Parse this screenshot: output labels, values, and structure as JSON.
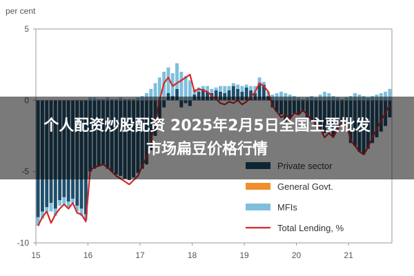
{
  "overlay": {
    "line1": "个人配资炒股配资 2025年2月5日全国主要批发",
    "line2": "市场扁豆价格行情"
  },
  "chart_data": {
    "type": "bar",
    "ylabel": "per cent",
    "ylim": [
      -10,
      5
    ],
    "yticks": [
      5,
      0,
      -5,
      -10
    ],
    "xticks": [
      "15",
      "16",
      "17",
      "18",
      "19",
      "20",
      "21"
    ],
    "x": [
      "2015-01",
      "2015-02",
      "2015-03",
      "2015-04",
      "2015-05",
      "2015-06",
      "2015-07",
      "2015-08",
      "2015-09",
      "2015-10",
      "2015-11",
      "2015-12",
      "2016-01",
      "2016-02",
      "2016-03",
      "2016-04",
      "2016-05",
      "2016-06",
      "2016-07",
      "2016-08",
      "2016-09",
      "2016-10",
      "2016-11",
      "2016-12",
      "2017-01",
      "2017-02",
      "2017-03",
      "2017-04",
      "2017-05",
      "2017-06",
      "2017-07",
      "2017-08",
      "2017-09",
      "2017-10",
      "2017-11",
      "2017-12",
      "2018-01",
      "2018-02",
      "2018-03",
      "2018-04",
      "2018-05",
      "2018-06",
      "2018-07",
      "2018-08",
      "2018-09",
      "2018-10",
      "2018-11",
      "2018-12",
      "2019-01",
      "2019-02",
      "2019-03",
      "2019-04",
      "2019-05",
      "2019-06",
      "2019-07",
      "2019-08",
      "2019-09",
      "2019-10",
      "2019-11",
      "2019-12",
      "2020-01",
      "2020-02",
      "2020-03",
      "2020-04",
      "2020-05",
      "2020-06",
      "2020-07",
      "2020-08",
      "2020-09",
      "2020-10",
      "2020-11",
      "2020-12",
      "2021-01",
      "2021-02",
      "2021-03",
      "2021-04",
      "2021-05",
      "2021-06",
      "2021-07",
      "2021-08",
      "2021-09",
      "2021-10"
    ],
    "series": [
      {
        "name": "Private sector",
        "type": "bar",
        "color": "#1f4e6b",
        "values": [
          -8.2,
          -7.8,
          -7.5,
          -7.2,
          -7.6,
          -7.0,
          -6.8,
          -7.1,
          -6.9,
          -7.4,
          -7.6,
          -8.0,
          -5.0,
          -4.8,
          -4.6,
          -4.5,
          -4.8,
          -5.0,
          -5.2,
          -5.3,
          -5.5,
          -5.6,
          -5.4,
          -5.1,
          -4.8,
          -4.5,
          -3.5,
          -2.5,
          -1.5,
          -0.5,
          0.5,
          0.3,
          0.8,
          -0.5,
          -0.2,
          -0.4,
          0.4,
          0.6,
          0.8,
          0.6,
          0.5,
          0.7,
          0.6,
          0.5,
          0.7,
          1.0,
          0.8,
          0.6,
          0.9,
          0.7,
          0.5,
          1.2,
          1.1,
          0.3,
          -0.5,
          -0.8,
          -1.0,
          -1.5,
          -1.2,
          -0.9,
          -1.0,
          -0.8,
          -1.2,
          -1.5,
          -1.8,
          -2.0,
          -2.3,
          -2.2,
          -2.5,
          -2.0,
          -1.6,
          -1.8,
          -3.0,
          -3.2,
          -3.6,
          -3.8,
          -3.4,
          -3.0,
          -2.6,
          -2.2,
          -1.8,
          -1.2
        ]
      },
      {
        "name": "General Govt.",
        "type": "bar",
        "color": "#f28e2b",
        "values": [
          0,
          0,
          0,
          0,
          0,
          0,
          0,
          0,
          0,
          0,
          0,
          0,
          0,
          0,
          0,
          0,
          0,
          0,
          0,
          0,
          0,
          0,
          0,
          0,
          0,
          0,
          0,
          0,
          0,
          0,
          0,
          0,
          0,
          0,
          0,
          0,
          0,
          0,
          0,
          0,
          0,
          0,
          0,
          0,
          0,
          0,
          0,
          0,
          0,
          0,
          0,
          0,
          0,
          0,
          0,
          0,
          0,
          0,
          0,
          0,
          0,
          0,
          0,
          0,
          0,
          0,
          0,
          0,
          0,
          0,
          0,
          0,
          0,
          0,
          0,
          0,
          0,
          0,
          0,
          0,
          0,
          0
        ]
      },
      {
        "name": "MFIs",
        "type": "bar",
        "color": "#7fbfdc",
        "values": [
          -0.6,
          -0.5,
          -0.4,
          -0.6,
          -0.5,
          -0.4,
          -0.5,
          -0.4,
          -0.3,
          -0.4,
          -0.5,
          -0.4,
          0.2,
          0.2,
          0.1,
          0.1,
          0.2,
          0.1,
          0.1,
          0.2,
          0.1,
          0.1,
          0.1,
          0.2,
          0.3,
          0.5,
          0.8,
          1.2,
          1.6,
          2.0,
          1.8,
          1.6,
          1.8,
          2.0,
          1.7,
          1.4,
          0.4,
          0.3,
          0.2,
          0.4,
          0.3,
          0.2,
          0.4,
          0.5,
          0.3,
          0.2,
          0.3,
          0.4,
          0.2,
          0.3,
          0.5,
          0.4,
          0.2,
          0.3,
          0.4,
          0.5,
          0.6,
          0.5,
          0.4,
          0.3,
          0.2,
          0.1,
          0.2,
          0.3,
          0.2,
          0.4,
          0.6,
          0.5,
          0.3,
          0.2,
          0.1,
          0.2,
          0.3,
          0.5,
          0.4,
          0.3,
          0.2,
          0.3,
          0.4,
          0.5,
          0.6,
          0.8
        ]
      },
      {
        "name": "Total Lending, %",
        "type": "line",
        "color": "#d62728",
        "values": [
          -8.8,
          -8.2,
          -7.8,
          -8.6,
          -8.0,
          -7.6,
          -7.3,
          -7.6,
          -7.2,
          -7.9,
          -8.0,
          -8.5,
          -4.9,
          -4.7,
          -4.6,
          -4.5,
          -4.7,
          -5.0,
          -5.3,
          -5.5,
          -5.7,
          -5.9,
          -5.6,
          -5.3,
          -4.6,
          -4.0,
          -2.8,
          -1.5,
          0.0,
          1.2,
          1.6,
          1.0,
          1.2,
          1.4,
          1.6,
          1.8,
          0.6,
          0.8,
          0.7,
          0.6,
          0.3,
          0.1,
          -0.2,
          -0.3,
          -0.1,
          -0.2,
          0.0,
          -0.3,
          -0.1,
          0.2,
          0.6,
          1.2,
          1.0,
          0.6,
          -0.4,
          -0.8,
          -1.2,
          -1.0,
          -1.3,
          -0.9,
          -1.0,
          -0.7,
          -1.0,
          -1.4,
          -1.6,
          -2.0,
          -2.6,
          -2.3,
          -2.6,
          -2.0,
          -1.5,
          -1.6,
          -2.8,
          -3.2,
          -3.6,
          -3.8,
          -3.3,
          -2.6,
          -2.0,
          -1.4,
          -0.9,
          -0.3
        ]
      }
    ],
    "legend": {
      "placement": "bottom-right"
    }
  }
}
